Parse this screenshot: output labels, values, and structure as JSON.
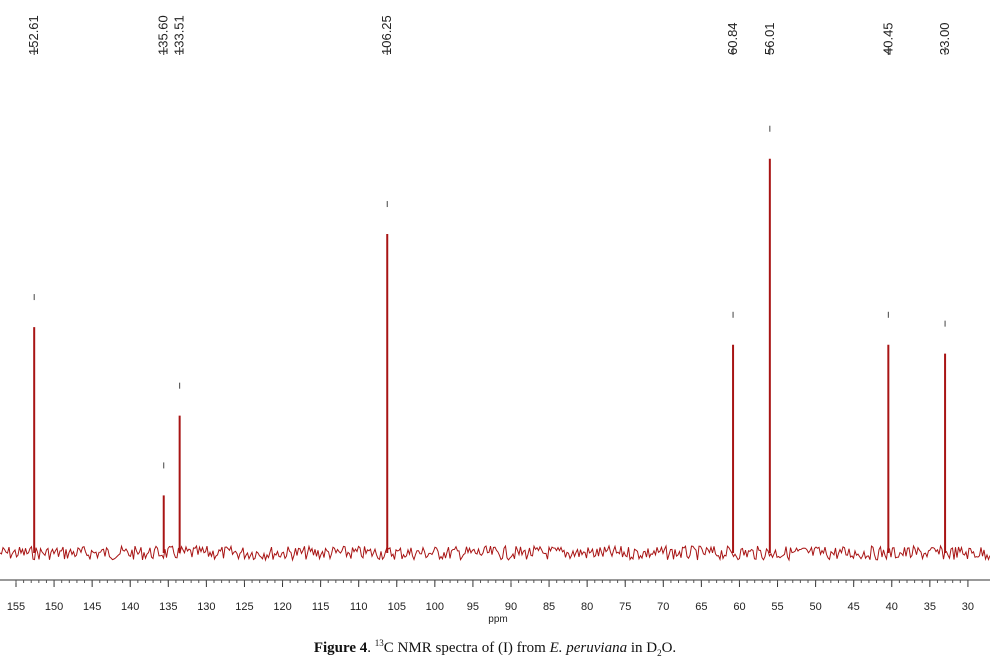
{
  "chart_data": {
    "type": "spectrum",
    "x": [
      152.61,
      135.6,
      133.51,
      106.25,
      60.84,
      56.01,
      40.45,
      33.0
    ],
    "x_labels": [
      "152.61",
      "135.60",
      "133.51",
      "106.25",
      "60.84",
      "56.01",
      "40.45",
      "33.00"
    ],
    "values": [
      51,
      13,
      31,
      72,
      47,
      89,
      47,
      45
    ],
    "color": "#a81414",
    "xlim": [
      157.1,
      27.1
    ],
    "ylim": [
      0,
      100
    ],
    "xticks": [
      155,
      150,
      145,
      140,
      135,
      130,
      125,
      120,
      115,
      110,
      105,
      100,
      95,
      90,
      85,
      80,
      75,
      70,
      65,
      60,
      55,
      50,
      45,
      40,
      35,
      30
    ],
    "x_label": "ppm"
  },
  "caption": [
    "Figure 4",
    ". ",
    "13",
    "C NMR spectra of (I) from ",
    "E. peruviana",
    " in D",
    "2",
    "O."
  ]
}
